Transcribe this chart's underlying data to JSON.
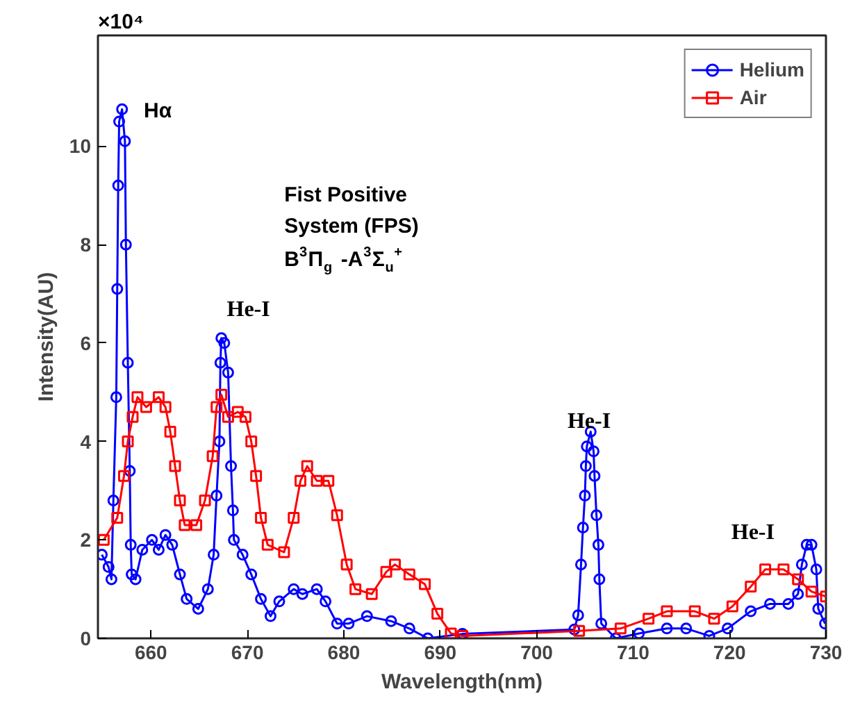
{
  "chart_data": {
    "type": "line",
    "xlabel": "Wavelength(nm)",
    "ylabel": "Intensity(AU)",
    "xlim": [
      654.5,
      730
    ],
    "xticks": [
      660,
      670,
      680,
      690,
      700,
      710,
      720,
      730
    ],
    "ylim": [
      0,
      12.25
    ],
    "yticks": [
      0,
      2,
      4,
      6,
      8,
      10
    ],
    "grid": false,
    "legend": "top right",
    "series": [
      {
        "name": "Helium",
        "color": "#0000ff",
        "marker": "circle",
        "x": [
          654.9,
          655.6,
          655.9,
          656.1,
          656.4,
          656.5,
          656.6,
          656.7,
          657.0,
          657.3,
          657.4,
          657.6,
          657.8,
          657.9,
          658.0,
          658.4,
          659.1,
          660.1,
          660.8,
          661.5,
          662.2,
          663.0,
          663.7,
          664.9,
          665.9,
          666.5,
          666.8,
          667.1,
          667.2,
          667.3,
          667.6,
          668.0,
          668.3,
          668.5,
          668.6,
          669.5,
          670.4,
          671.4,
          672.4,
          673.3,
          674.8,
          675.7,
          677.2,
          678.1,
          679.3,
          680.5,
          682.4,
          684.9,
          686.8,
          688.7,
          692.3,
          703.9,
          704.3,
          704.6,
          704.8,
          705.0,
          705.1,
          705.2,
          705.6,
          705.9,
          706.0,
          706.2,
          706.4,
          706.5,
          706.7,
          708.2,
          710.6,
          713.5,
          715.5,
          717.9,
          719.8,
          722.2,
          724.2,
          726.1,
          727.1,
          727.5,
          728.0,
          728.5,
          729.0,
          729.2,
          729.9
        ],
        "values": [
          1.7,
          1.45,
          1.2,
          2.8,
          4.9,
          7.1,
          9.2,
          10.5,
          10.75,
          10.1,
          8.0,
          5.6,
          3.4,
          1.9,
          1.3,
          1.2,
          1.8,
          2.0,
          1.8,
          2.1,
          1.9,
          1.3,
          0.8,
          0.6,
          1.0,
          1.7,
          2.9,
          4.0,
          5.6,
          6.1,
          6.0,
          5.4,
          3.5,
          2.6,
          2.0,
          1.7,
          1.3,
          0.8,
          0.45,
          0.75,
          1.0,
          0.9,
          1.0,
          0.75,
          0.3,
          0.3,
          0.45,
          0.35,
          0.2,
          0.0,
          0.09,
          0.18,
          0.47,
          1.5,
          2.25,
          2.9,
          3.5,
          3.9,
          4.2,
          3.8,
          3.3,
          2.5,
          1.9,
          1.2,
          0.3,
          0.0,
          0.1,
          0.2,
          0.2,
          0.05,
          0.2,
          0.55,
          0.7,
          0.7,
          0.9,
          1.5,
          1.9,
          1.9,
          1.4,
          0.6,
          0.3
        ]
      },
      {
        "name": "Air",
        "color": "#ff0000",
        "marker": "square",
        "x": [
          655.1,
          656.5,
          657.2,
          657.6,
          658.1,
          658.6,
          659.5,
          660.8,
          661.5,
          662.0,
          662.5,
          663.0,
          663.5,
          664.7,
          665.6,
          666.4,
          666.8,
          667.3,
          668.0,
          669.0,
          669.8,
          670.4,
          670.9,
          671.4,
          672.1,
          673.8,
          674.8,
          675.5,
          676.2,
          677.2,
          678.4,
          679.3,
          680.3,
          681.2,
          682.9,
          684.4,
          685.3,
          686.8,
          688.4,
          689.7,
          691.1,
          692.3,
          704.4,
          708.7,
          711.6,
          713.5,
          716.4,
          718.4,
          720.3,
          722.2,
          723.7,
          725.6,
          727.1,
          728.5,
          730.0
        ],
        "values": [
          2.0,
          2.45,
          3.3,
          4.0,
          4.5,
          4.9,
          4.7,
          4.9,
          4.7,
          4.2,
          3.5,
          2.8,
          2.3,
          2.3,
          2.8,
          3.7,
          4.7,
          4.95,
          4.5,
          4.6,
          4.5,
          4.0,
          3.3,
          2.45,
          1.9,
          1.75,
          2.45,
          3.2,
          3.5,
          3.2,
          3.2,
          2.5,
          1.5,
          1.0,
          0.9,
          1.35,
          1.5,
          1.3,
          1.1,
          0.5,
          0.1,
          0.05,
          0.15,
          0.2,
          0.4,
          0.55,
          0.55,
          0.4,
          0.65,
          1.05,
          1.4,
          1.4,
          1.2,
          0.95,
          0.85
        ]
      }
    ],
    "annotations": [
      "×10⁴",
      "Hα",
      "He-I",
      "He-I",
      "He-I",
      "Fist Positive",
      "System (FPS)",
      "B$^{3}$Π$_{g}$ -A$^{3}$Σ$_{u}$$^{+}$"
    ]
  }
}
